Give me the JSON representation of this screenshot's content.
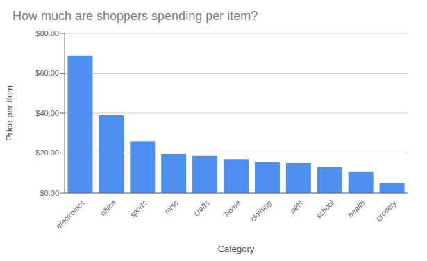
{
  "chart_data": {
    "type": "bar",
    "title": "How much are shoppers spending per item?",
    "xlabel": "Category",
    "ylabel": "Price per item",
    "categories": [
      "electronics",
      "office",
      "sports",
      "misc",
      "crafts",
      "home",
      "clothing",
      "pets",
      "school",
      "health",
      "grocery"
    ],
    "values": [
      69.0,
      39.0,
      26.0,
      19.5,
      18.5,
      17.0,
      15.5,
      15.0,
      13.0,
      10.5,
      5.0
    ],
    "color": "#4d90f0",
    "ylim": [
      0,
      80
    ],
    "yticks": [
      {
        "value": 0,
        "label": "$0.00"
      },
      {
        "value": 20,
        "label": "$20.00"
      },
      {
        "value": 40,
        "label": "$40.00"
      },
      {
        "value": 60,
        "label": "$60.00"
      },
      {
        "value": 80,
        "label": "$80.00"
      }
    ],
    "grid": true
  }
}
